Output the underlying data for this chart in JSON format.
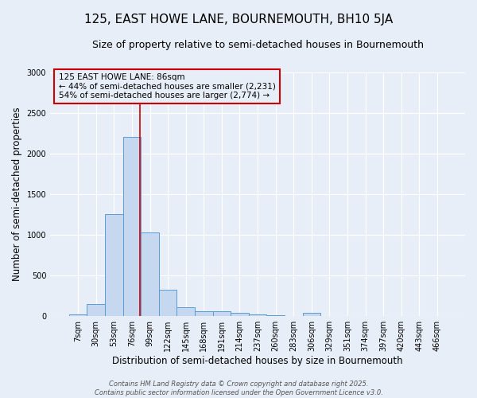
{
  "title": "125, EAST HOWE LANE, BOURNEMOUTH, BH10 5JA",
  "subtitle": "Size of property relative to semi-detached houses in Bournemouth",
  "xlabel": "Distribution of semi-detached houses by size in Bournemouth",
  "ylabel": "Number of semi-detached properties",
  "categories": [
    "7sqm",
    "30sqm",
    "53sqm",
    "76sqm",
    "99sqm",
    "122sqm",
    "145sqm",
    "168sqm",
    "191sqm",
    "214sqm",
    "237sqm",
    "260sqm",
    "283sqm",
    "306sqm",
    "329sqm",
    "351sqm",
    "374sqm",
    "397sqm",
    "420sqm",
    "443sqm",
    "466sqm"
  ],
  "values": [
    20,
    150,
    1250,
    2200,
    1030,
    320,
    110,
    65,
    65,
    40,
    20,
    15,
    5,
    40,
    5,
    0,
    0,
    0,
    0,
    0,
    0
  ],
  "bar_color": "#c5d8f0",
  "bar_edge_color": "#5b9bd5",
  "background_color": "#e8eef8",
  "grid_color": "#ffffff",
  "vline_color": "#cc0000",
  "annotation_text": "125 EAST HOWE LANE: 86sqm\n← 44% of semi-detached houses are smaller (2,231)\n54% of semi-detached houses are larger (2,774) →",
  "annotation_box_color": "#cc0000",
  "ylim": [
    0,
    3000
  ],
  "yticks": [
    0,
    500,
    1000,
    1500,
    2000,
    2500,
    3000
  ],
  "footer_line1": "Contains HM Land Registry data © Crown copyright and database right 2025.",
  "footer_line2": "Contains public sector information licensed under the Open Government Licence v3.0.",
  "title_fontsize": 11,
  "subtitle_fontsize": 9,
  "tick_fontsize": 7,
  "label_fontsize": 8.5,
  "footer_fontsize": 6,
  "annotation_fontsize": 7.5
}
